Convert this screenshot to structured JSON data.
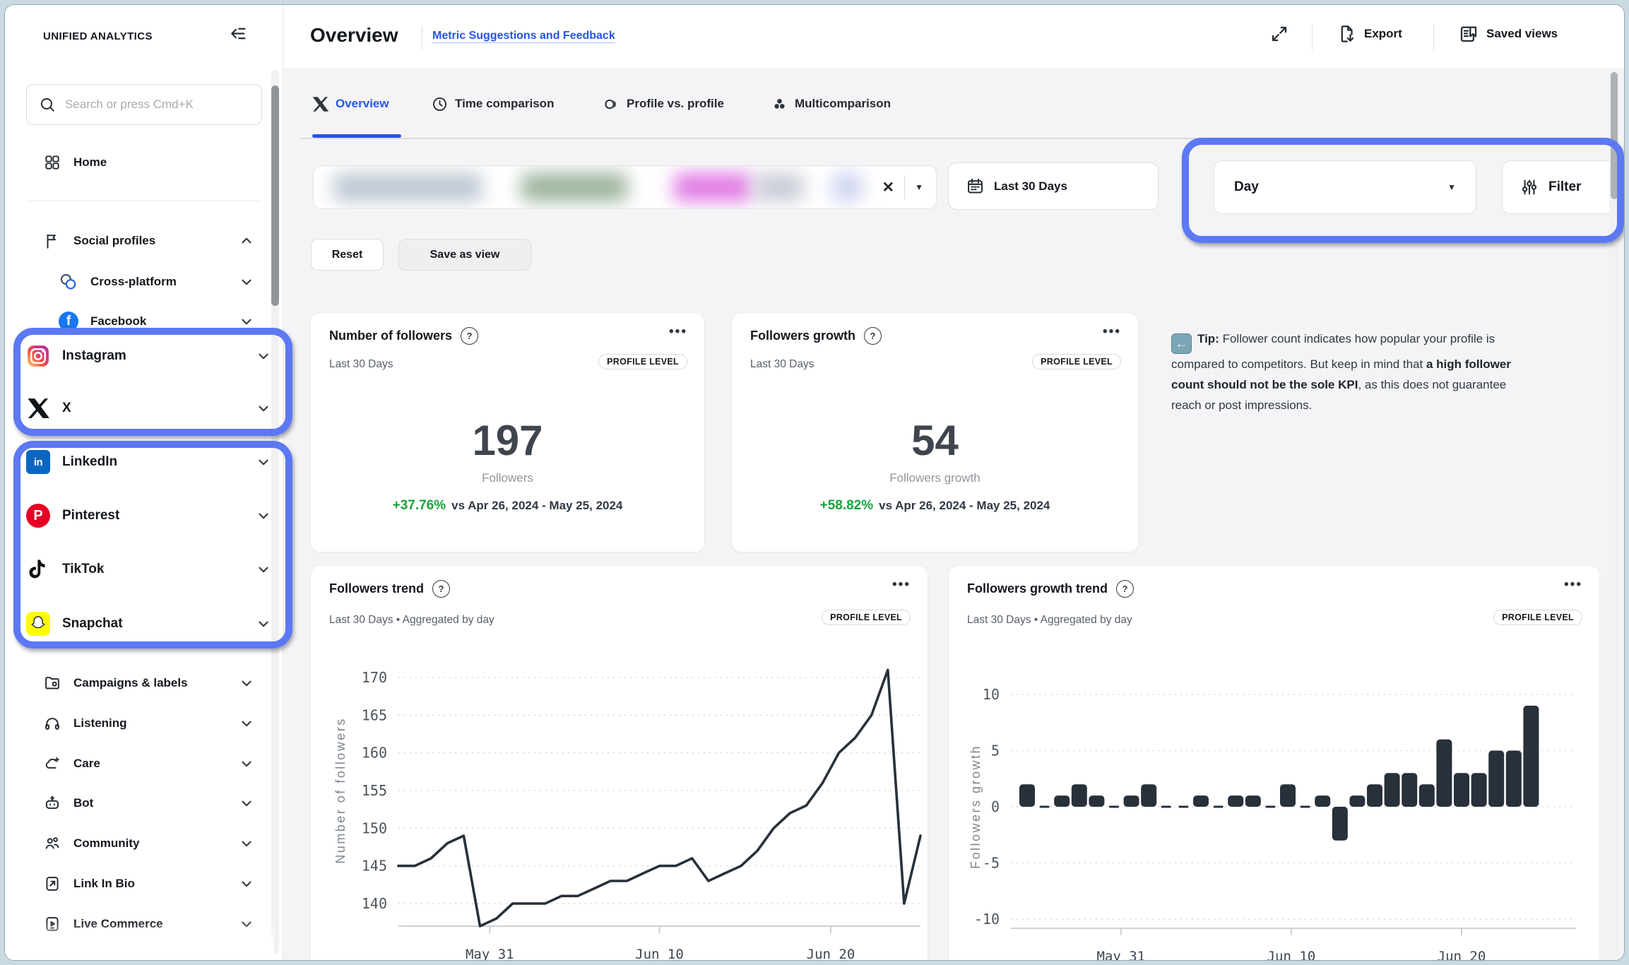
{
  "app": {
    "brand": "UNIFIED ANALYTICS"
  },
  "sidebar": {
    "search": {
      "placeholder": "Search or press Cmd+K"
    },
    "home": {
      "label": "Home"
    },
    "social_section": {
      "label": "Social profiles"
    },
    "social_items": [
      {
        "label": "Cross-platform",
        "icon": "cross-platform-icon",
        "highlighted": false
      },
      {
        "label": "Facebook",
        "icon": "facebook-icon",
        "highlighted": false
      },
      {
        "label": "Instagram",
        "icon": "instagram-icon",
        "highlighted": true
      },
      {
        "label": "X",
        "icon": "x-icon",
        "highlighted": true
      },
      {
        "label": "LinkedIn",
        "icon": "linkedin-icon",
        "highlighted": true
      },
      {
        "label": "Pinterest",
        "icon": "pinterest-icon",
        "highlighted": true
      },
      {
        "label": "TikTok",
        "icon": "tiktok-icon",
        "highlighted": true
      },
      {
        "label": "Snapchat",
        "icon": "snapchat-icon",
        "highlighted": true
      }
    ],
    "bottom_items": [
      {
        "label": "Campaigns & labels",
        "icon": "folder-icon"
      },
      {
        "label": "Listening",
        "icon": "headphones-icon"
      },
      {
        "label": "Care",
        "icon": "care-icon"
      },
      {
        "label": "Bot",
        "icon": "bot-icon"
      },
      {
        "label": "Community",
        "icon": "community-icon"
      },
      {
        "label": "Link In Bio",
        "icon": "link-in-bio-icon"
      },
      {
        "label": "Live Commerce",
        "icon": "live-commerce-icon"
      }
    ]
  },
  "header": {
    "title": "Overview",
    "feedback_link": "Metric Suggestions and Feedback",
    "export_label": "Export",
    "saved_views_label": "Saved views"
  },
  "tabs": [
    {
      "label": "Overview",
      "active": true
    },
    {
      "label": "Time comparison",
      "active": false
    },
    {
      "label": "Profile vs. profile",
      "active": false
    },
    {
      "label": "Multicomparison",
      "active": false
    }
  ],
  "filter_bar": {
    "date_range": "Last 30 Days",
    "granularity": "Day",
    "filter_label": "Filter",
    "clear_icon": "✕",
    "caret_icon": "▼",
    "reset_label": "Reset",
    "save_view_label": "Save as view"
  },
  "kpi_cards": [
    {
      "title": "Number of followers",
      "period": "Last 30 Days",
      "badge": "PROFILE LEVEL",
      "value": "197",
      "unit": "Followers",
      "delta": "+37.76%",
      "compare": "vs Apr 26, 2024 - May 25, 2024"
    },
    {
      "title": "Followers growth",
      "period": "Last 30 Days",
      "badge": "PROFILE LEVEL",
      "value": "54",
      "unit": "Followers growth",
      "delta": "+58.82%",
      "compare": "vs Apr 26, 2024 - May 25, 2024"
    }
  ],
  "tip": {
    "label": "Tip:",
    "text_before": " Follower count indicates how popular your profile is compared to competitors. But keep in mind that ",
    "text_bold": "a high follower count should not be the sole KPI",
    "text_after": ", as this does not guarantee reach or post impressions."
  },
  "annotation_color": "#5c78f5",
  "chart_data": [
    {
      "type": "line",
      "title": "Followers trend",
      "period": "Last 30 Days • Aggregated by day",
      "badge": "PROFILE LEVEL",
      "ylabel": "Number of followers",
      "ylim": [
        137,
        172
      ],
      "yticks": [
        140,
        145,
        150,
        155,
        160,
        165,
        170
      ],
      "xticks": [
        {
          "label": "May 31",
          "idx": 5.6
        },
        {
          "label": "Jun 10",
          "idx": 16
        },
        {
          "label": "Jun 20",
          "idx": 26.5
        }
      ],
      "values": [
        145,
        145,
        146,
        148,
        149,
        137,
        138,
        140,
        140,
        140,
        141,
        141,
        142,
        143,
        143,
        144,
        145,
        145,
        146,
        143,
        144,
        145,
        147,
        150,
        152,
        153,
        156,
        160,
        162,
        165,
        171,
        140,
        149
      ]
    },
    {
      "type": "bar",
      "title": "Followers growth trend",
      "period": "Last 30 Days • Aggregated by day",
      "badge": "PROFILE LEVEL",
      "ylabel": "Followers growth",
      "ylim": [
        -10,
        10
      ],
      "yticks": [
        10,
        5,
        0,
        -5,
        -10
      ],
      "xticks": [
        {
          "label": "May 31",
          "idx": 5.4
        },
        {
          "label": "Jun 10",
          "idx": 15.2
        },
        {
          "label": "Jun 20",
          "idx": 25
        }
      ],
      "values": [
        2,
        0,
        1,
        2,
        1,
        0,
        1,
        2,
        0,
        0,
        1,
        0,
        1,
        1,
        0,
        2,
        0,
        1,
        -3,
        1,
        2,
        3,
        3,
        2,
        6,
        3,
        3,
        5,
        5,
        9
      ]
    }
  ]
}
